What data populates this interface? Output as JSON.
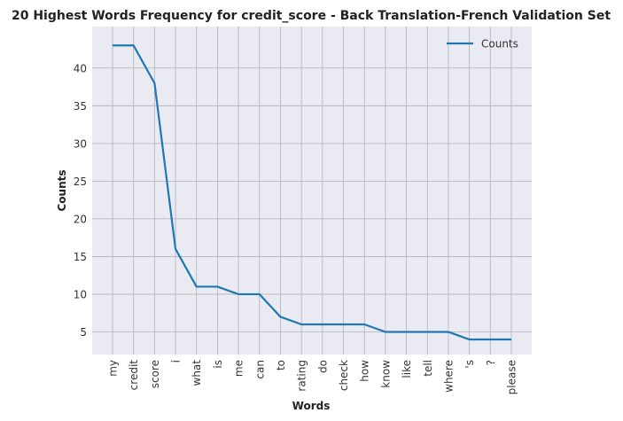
{
  "chart_data": {
    "type": "line",
    "title": "20 Highest Words Frequency for credit_score - Back Translation-French Validation Set",
    "xlabel": "Words",
    "ylabel": "Counts",
    "categories": [
      "my",
      "credit",
      "score",
      "i",
      "what",
      "is",
      "me",
      "can",
      "to",
      "rating",
      "do",
      "check",
      "how",
      "know",
      "like",
      "tell",
      "where",
      "'s",
      "?",
      "please"
    ],
    "series": [
      {
        "name": "Counts",
        "values": [
          43,
          43,
          38,
          16,
          11,
          11,
          10,
          10,
          7,
          6,
          6,
          6,
          6,
          5,
          5,
          5,
          5,
          4,
          4,
          4
        ]
      }
    ],
    "yticks": [
      5,
      10,
      15,
      20,
      25,
      30,
      35,
      40
    ],
    "ylim": [
      2,
      45.5
    ],
    "grid": true,
    "legend_position": "top-right",
    "colors": {
      "line": "#1f77b4",
      "background": "#eaeaf2",
      "grid": "#b0b0b8"
    }
  }
}
